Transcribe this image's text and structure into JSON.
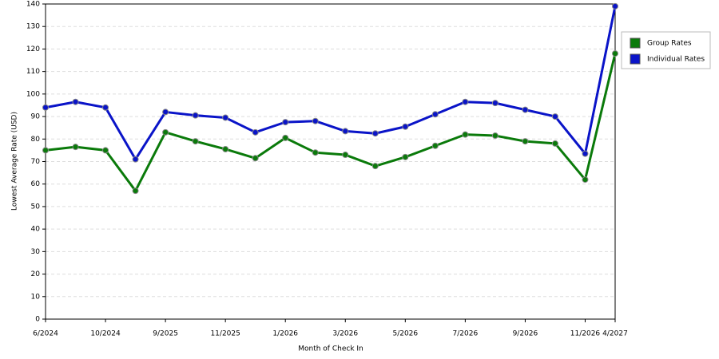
{
  "chart_data": {
    "type": "line",
    "x_label": "Month of Check In",
    "y_label": "Lowest Average Rate (USD)",
    "categories": [
      "6/2024",
      null,
      "10/2024",
      null,
      "9/2025",
      null,
      "11/2025",
      null,
      "1/2026",
      null,
      "3/2026",
      null,
      "5/2026",
      null,
      "7/2026",
      null,
      "9/2026",
      null,
      "11/2026",
      "4/2027"
    ],
    "series": [
      {
        "name": "Group Rates",
        "color": "#0a7a0a",
        "values": [
          75,
          76.5,
          75,
          57,
          83,
          79,
          75.5,
          71.5,
          80.5,
          74,
          73,
          68,
          72,
          77,
          82,
          81.5,
          79,
          78,
          62,
          118
        ]
      },
      {
        "name": "Individual Rates",
        "color": "#0a14c8",
        "values": [
          94,
          96.5,
          94,
          71,
          92,
          90.5,
          89.5,
          83,
          87.5,
          88,
          83.5,
          82.5,
          85.5,
          91,
          96.5,
          96,
          93,
          90,
          73.5,
          139
        ]
      }
    ],
    "ylim": [
      0,
      140
    ],
    "yticks": [
      0,
      10,
      20,
      30,
      40,
      50,
      60,
      70,
      80,
      90,
      100,
      110,
      120,
      130,
      140
    ],
    "grid": true,
    "legend": "right"
  }
}
